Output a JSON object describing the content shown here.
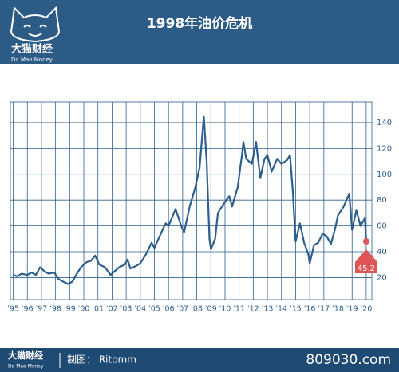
{
  "chart_data": {
    "type": "line",
    "title": "1998年油价危机",
    "brand": "大猫财经",
    "brand_sub": "Da Mao Money",
    "credit": "制图： Ritomm",
    "website": "809030.com",
    "annotation": "45.2",
    "color": "#2d5f8e",
    "grid": true,
    "xlim": [
      1994.8,
      2020.4
    ],
    "ylim": [
      3,
      156
    ],
    "yticks": [
      20,
      40,
      60,
      80,
      100,
      120,
      140
    ],
    "xticks": [
      {
        "value": 1995,
        "label": "'95"
      },
      {
        "value": 1996,
        "label": "'96"
      },
      {
        "value": 1997,
        "label": "'97"
      },
      {
        "value": 1998,
        "label": "'98"
      },
      {
        "value": 1999,
        "label": "'99"
      },
      {
        "value": 2000,
        "label": "'00"
      },
      {
        "value": 2001,
        "label": "'01"
      },
      {
        "value": 2002,
        "label": "'02"
      },
      {
        "value": 2003,
        "label": "'03"
      },
      {
        "value": 2004,
        "label": "'04"
      },
      {
        "value": 2005,
        "label": "'05"
      },
      {
        "value": 2006,
        "label": "'06"
      },
      {
        "value": 2007,
        "label": "'07"
      },
      {
        "value": 2008,
        "label": "'08"
      },
      {
        "value": 2009,
        "label": "'09"
      },
      {
        "value": 2010,
        "label": "'10"
      },
      {
        "value": 2011,
        "label": "'11"
      },
      {
        "value": 2012,
        "label": "'12"
      },
      {
        "value": 2013,
        "label": "'13"
      },
      {
        "value": 2014,
        "label": "'14"
      },
      {
        "value": 2015,
        "label": "'15"
      },
      {
        "value": 2016,
        "label": "'16"
      },
      {
        "value": 2017,
        "label": "'17"
      },
      {
        "value": 2018,
        "label": "'18"
      },
      {
        "value": 2019,
        "label": "'19"
      },
      {
        "value": 2020,
        "label": "'20"
      }
    ],
    "x": [
      1995.0,
      1995.3,
      1995.6,
      1996.0,
      1996.3,
      1996.6,
      1996.9,
      1997.2,
      1997.5,
      1997.9,
      1998.2,
      1998.5,
      1998.9,
      1999.2,
      1999.5,
      1999.8,
      2000.2,
      2000.5,
      2000.8,
      2001.1,
      2001.5,
      2001.9,
      2002.2,
      2002.5,
      2002.9,
      2003.1,
      2003.3,
      2003.7,
      2004.0,
      2004.4,
      2004.8,
      2005.0,
      2005.5,
      2005.8,
      2006.0,
      2006.5,
      2006.9,
      2007.1,
      2007.5,
      2007.9,
      2008.2,
      2008.5,
      2008.7,
      2008.9,
      2009.0,
      2009.3,
      2009.5,
      2009.9,
      2010.3,
      2010.5,
      2010.9,
      2011.2,
      2011.3,
      2011.5,
      2011.9,
      2012.2,
      2012.5,
      2012.8,
      2013.0,
      2013.3,
      2013.7,
      2014.0,
      2014.4,
      2014.6,
      2014.8,
      2015.0,
      2015.3,
      2015.6,
      2015.9,
      2016.0,
      2016.3,
      2016.6,
      2016.9,
      2017.2,
      2017.5,
      2017.8,
      2018.0,
      2018.4,
      2018.8,
      2019.0,
      2019.3,
      2019.6,
      2019.9,
      2020.0
    ],
    "values": [
      22,
      21,
      23,
      22,
      24,
      22,
      28,
      25,
      23,
      24,
      19,
      17,
      15,
      17,
      23,
      28,
      32,
      33,
      37,
      30,
      28,
      22,
      25,
      28,
      30,
      34,
      27,
      29,
      31,
      38,
      47,
      43,
      55,
      62,
      60,
      73,
      60,
      55,
      75,
      90,
      105,
      145,
      110,
      50,
      42,
      50,
      70,
      77,
      83,
      75,
      90,
      115,
      125,
      112,
      108,
      125,
      97,
      112,
      115,
      102,
      112,
      108,
      111,
      115,
      87,
      48,
      62,
      47,
      38,
      31,
      45,
      47,
      54,
      52,
      46,
      58,
      68,
      75,
      85,
      57,
      72,
      60,
      66,
      48
    ]
  }
}
